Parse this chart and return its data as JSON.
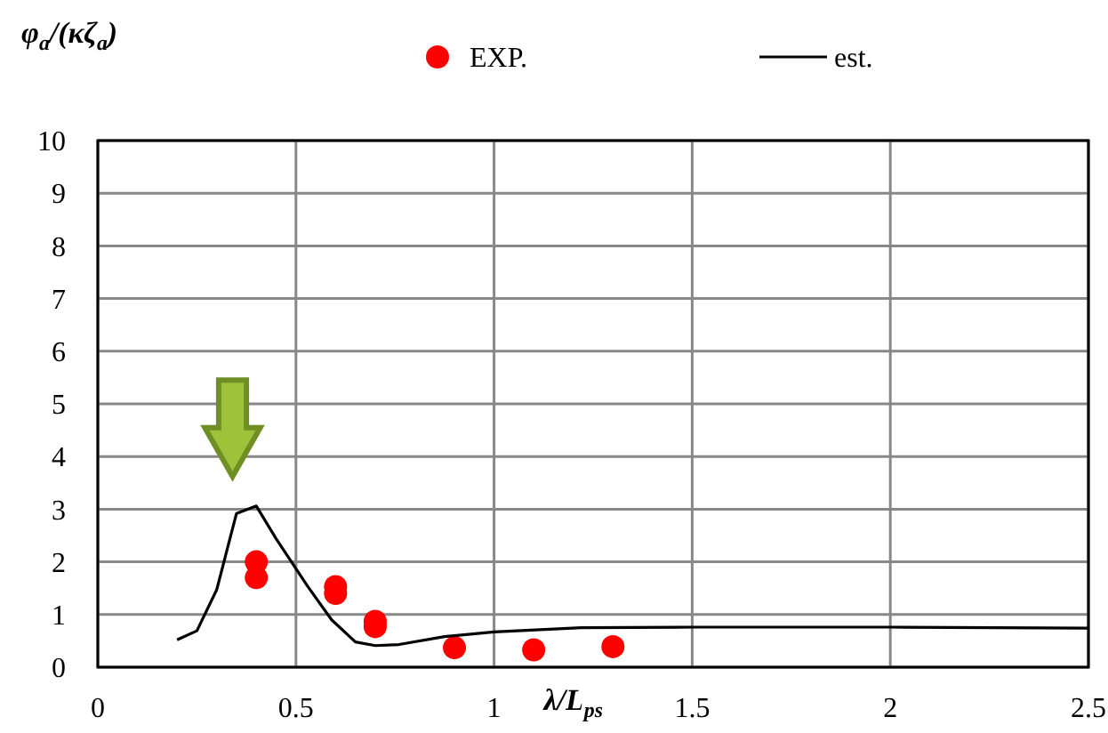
{
  "chart_data": {
    "type": "scatter",
    "xlabel": "λ/L$_{ps}$",
    "ylabel": "φ$_{a}$/(κζ$_{a}$)",
    "xlim": [
      0,
      2.5
    ],
    "xticks": [
      0,
      0.5,
      1,
      1.5,
      2,
      2.5
    ],
    "ylim": [
      0,
      10
    ],
    "yticks": [
      0,
      1,
      2,
      3,
      4,
      5,
      6,
      7,
      8,
      9,
      10
    ],
    "grid": true,
    "legend": "top",
    "series": [
      {
        "name": "EXP.",
        "color": "#ff0000",
        "marker": "circle",
        "x": [
          0.4,
          0.4,
          0.6,
          0.6,
          0.7,
          0.7,
          0.9,
          1.1,
          1.3
        ],
        "values": [
          2.0,
          1.7,
          1.53,
          1.4,
          0.87,
          0.77,
          0.37,
          0.33,
          0.39
        ]
      },
      {
        "name": "est.",
        "type": "line",
        "color": "#000000",
        "marker": "none",
        "line_style": "solid",
        "x": [
          0.2,
          0.25,
          0.3,
          0.35,
          0.4,
          0.45,
          0.53,
          0.59,
          0.65,
          0.7,
          0.76,
          0.875,
          1.0,
          1.22,
          1.5,
          2.0,
          2.5
        ],
        "values": [
          0.52,
          0.69,
          1.47,
          2.92,
          3.06,
          2.44,
          1.53,
          0.9,
          0.48,
          0.41,
          0.43,
          0.58,
          0.67,
          0.75,
          0.76,
          0.76,
          0.74
        ]
      }
    ]
  }
}
